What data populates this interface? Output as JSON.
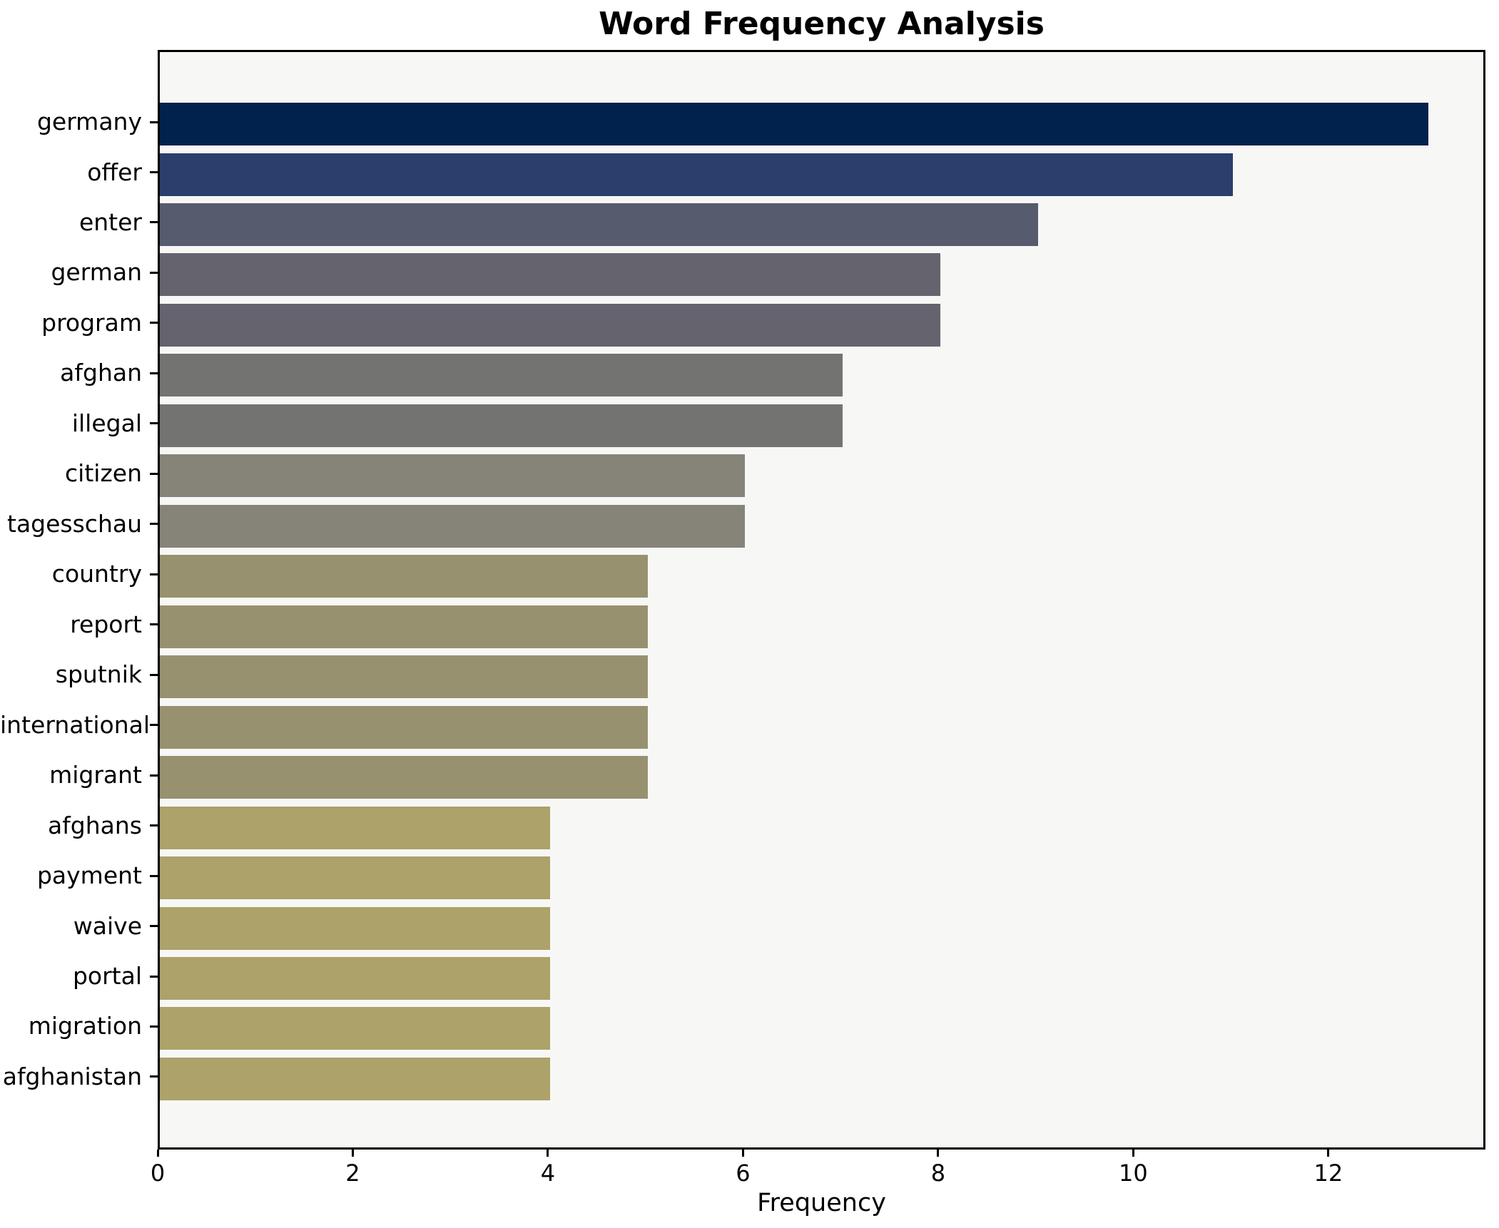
{
  "chart_data": {
    "type": "bar",
    "orientation": "horizontal",
    "title": "Word Frequency Analysis",
    "xlabel": "Frequency",
    "ylabel": "",
    "categories": [
      "germany",
      "offer",
      "enter",
      "german",
      "program",
      "afghan",
      "illegal",
      "citizen",
      "tagesschau",
      "country",
      "report",
      "sputnik",
      "international",
      "migrant",
      "afghans",
      "payment",
      "waive",
      "portal",
      "migration",
      "afghanistan"
    ],
    "values": [
      13,
      11,
      9,
      8,
      8,
      7,
      7,
      6,
      6,
      5,
      5,
      5,
      5,
      5,
      4,
      4,
      4,
      4,
      4,
      4
    ],
    "bar_colors": [
      "#01224d",
      "#2b3f6d",
      "#565c6d",
      "#64636e",
      "#64636e",
      "#737372",
      "#737372",
      "#868379",
      "#868379",
      "#989170",
      "#989170",
      "#989170",
      "#989170",
      "#989170",
      "#aca26a",
      "#aca26a",
      "#aca26a",
      "#aca26a",
      "#aca26a",
      "#aca26a"
    ],
    "xtick_labels": [
      "0",
      "2",
      "4",
      "6",
      "8",
      "10",
      "12"
    ],
    "xtick_values": [
      0,
      2,
      4,
      6,
      8,
      10,
      12
    ],
    "xlim": [
      0,
      13.61
    ],
    "grid": false,
    "legend": "none",
    "colors": {
      "figure_background": "#ffffff",
      "plot_background": "#f7f7f5",
      "spine": "#000000",
      "text": "#000000"
    }
  }
}
